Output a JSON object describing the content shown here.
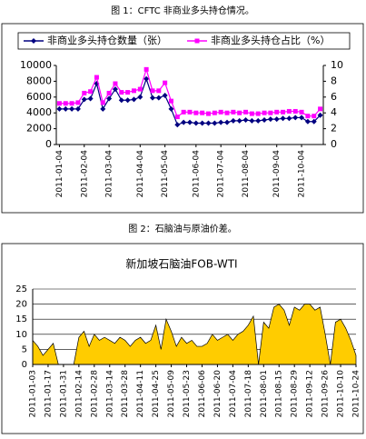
{
  "chart_data": [
    {
      "type": "line",
      "caption": "图 1：CFTC 非商业多头持仓情况。",
      "categories": [
        "2011-01-04",
        null,
        null,
        null,
        "2011-02-04",
        null,
        null,
        null,
        "2011-03-04",
        null,
        null,
        null,
        null,
        "2011-04-04",
        null,
        null,
        null,
        "2011-05-04",
        null,
        null,
        null,
        null,
        "2011-06-04",
        null,
        null,
        null,
        "2011-07-04",
        null,
        null,
        null,
        "2011-08-04",
        null,
        null,
        null,
        null,
        "2011-09-04",
        null,
        null,
        null,
        "2011-10-04",
        null,
        null,
        null
      ],
      "series": [
        {
          "name": "非商业多头持仓数量（张）",
          "color": "#000080",
          "marker": "diamond",
          "values": [
            4500,
            4500,
            4500,
            4500,
            5700,
            5800,
            7700,
            4500,
            5800,
            7000,
            5600,
            5600,
            5700,
            6000,
            8300,
            5900,
            5900,
            6200,
            4500,
            2500,
            2800,
            2800,
            2700,
            2700,
            2700,
            2700,
            2800,
            2800,
            3000,
            3000,
            3100,
            3000,
            3000,
            3100,
            3200,
            3200,
            3300,
            3300,
            3400,
            3400,
            2900,
            2900,
            3700
          ]
        },
        {
          "name": "非商业多头持仓占比（%）",
          "color": "#ff00ff",
          "marker": "square",
          "axis": "y2",
          "values": [
            5.2,
            5.2,
            5.2,
            5.3,
            6.5,
            6.7,
            8.5,
            5.3,
            6.5,
            7.7,
            6.6,
            6.6,
            6.8,
            7.0,
            9.5,
            6.8,
            6.8,
            7.8,
            5.5,
            3.5,
            4.1,
            4.1,
            4.0,
            4.0,
            3.9,
            4.0,
            4.1,
            4.0,
            4.1,
            4.0,
            4.1,
            3.9,
            3.9,
            4.0,
            4.0,
            4.1,
            4.1,
            4.2,
            4.2,
            4.1,
            3.6,
            3.6,
            4.5
          ]
        }
      ],
      "ylim": [
        0,
        10000
      ],
      "yticks": [
        0,
        2000,
        4000,
        6000,
        8000,
        10000
      ],
      "y2lim": [
        0,
        10
      ],
      "y2ticks": [
        0,
        2,
        4,
        6,
        8,
        10
      ],
      "legend": "top",
      "grid": false
    },
    {
      "type": "area",
      "caption": "图 2：石脑油与原油价差。",
      "title": "新加坡石脑油FOB-WTI",
      "categories": [
        "2011-01-03",
        null,
        null,
        "2011-01-17",
        null,
        null,
        "2011-01-31",
        null,
        null,
        "2011-02-14",
        null,
        null,
        "2011-02-28",
        null,
        null,
        "2011-03-14",
        null,
        null,
        "2011-03-28",
        null,
        null,
        "2011-04-11",
        null,
        null,
        "2011-04-25",
        null,
        null,
        "2011-05-09",
        null,
        null,
        "2011-05-23",
        null,
        null,
        "2011-06-06",
        null,
        null,
        "2011-06-20",
        null,
        null,
        "2011-07-04",
        null,
        null,
        "2011-07-18",
        null,
        null,
        "2011-08-01",
        null,
        null,
        "2011-08-15",
        null,
        null,
        "2011-08-29",
        null,
        null,
        "2011-09-12",
        null,
        null,
        "2011-09-26",
        null,
        null,
        "2011-10-10",
        null,
        null,
        "2011-10-24"
      ],
      "values": [
        8,
        6,
        3,
        5,
        7,
        0,
        0,
        0,
        0,
        9,
        11,
        6,
        10,
        8,
        9,
        8,
        7,
        9,
        8,
        6,
        8,
        9,
        7,
        8,
        13,
        5,
        15,
        11,
        6,
        9,
        7,
        8,
        6,
        6,
        7,
        10,
        8,
        9,
        10,
        8,
        10,
        11,
        13,
        16,
        0,
        14,
        12,
        19,
        20,
        18,
        13,
        19,
        18,
        20,
        20,
        18,
        19,
        10,
        0,
        14,
        15,
        12,
        8,
        3
      ],
      "color": "#ffcc00",
      "ylim": [
        0,
        25
      ],
      "yticks": [
        0,
        5,
        10,
        15,
        20,
        25
      ],
      "grid": true
    }
  ]
}
